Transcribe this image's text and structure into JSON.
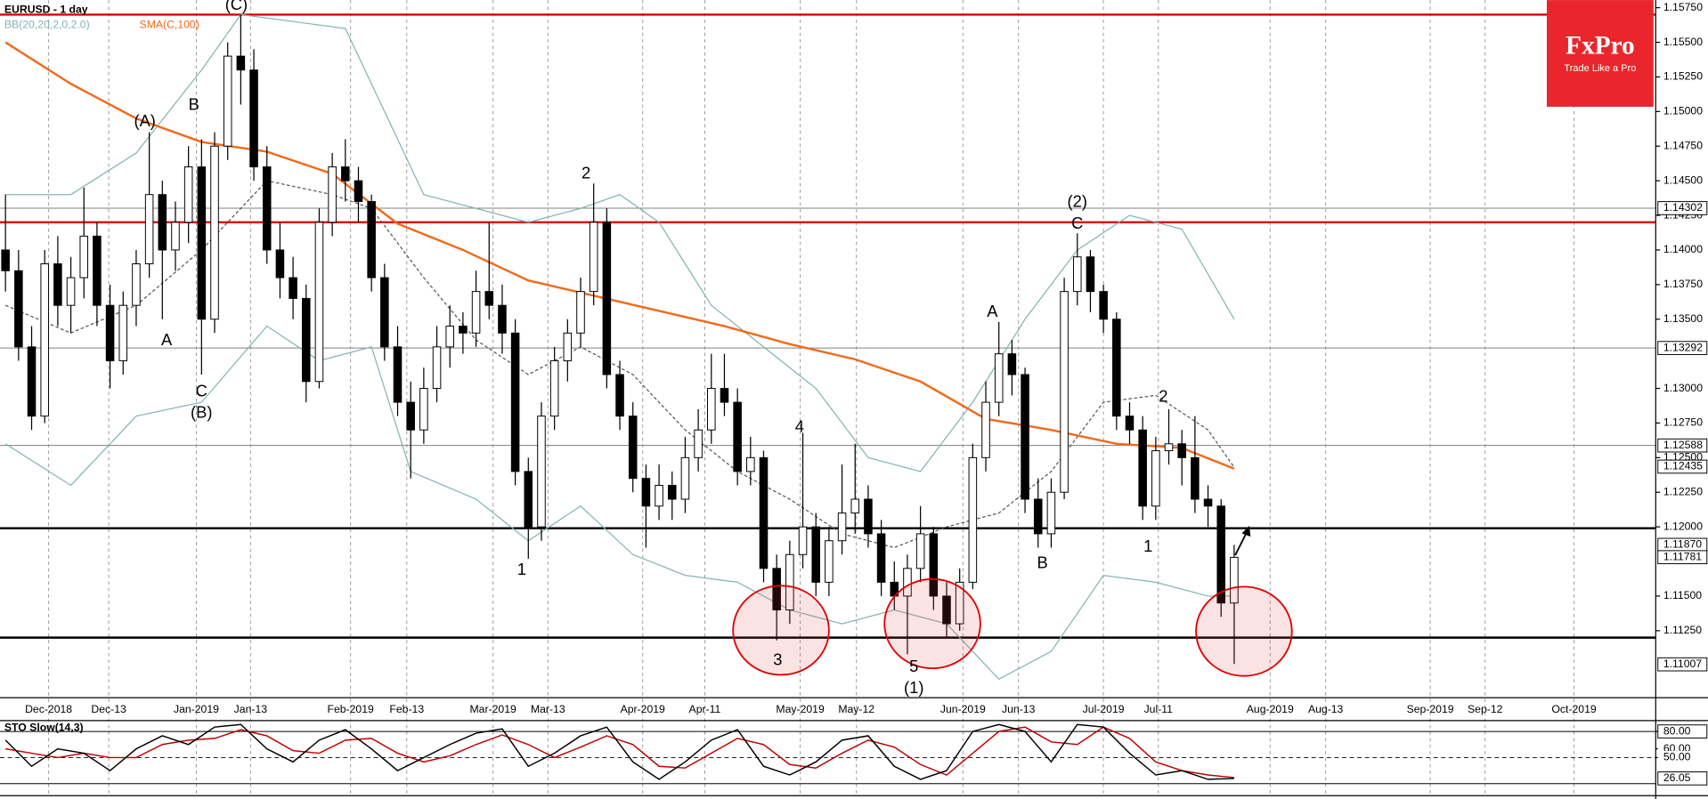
{
  "chart_data": {
    "type": "candlestick",
    "title": "EURUSD - 1 day",
    "xlim": [
      -0.42,
      126.25
    ],
    "ylim": [
      1.10766,
      1.15805
    ],
    "xticks": [
      {
        "value": 3.3,
        "label": "Dec-2018"
      },
      {
        "value": 7.9,
        "label": "Dec-13"
      },
      {
        "value": 14.6,
        "label": "Jan-2019"
      },
      {
        "value": 18.75,
        "label": "Jan-13"
      },
      {
        "value": 26.4,
        "label": "Feb-2019"
      },
      {
        "value": 30.7,
        "label": "Feb-13"
      },
      {
        "value": 37.3,
        "label": "Mar-2019"
      },
      {
        "value": 41.5,
        "label": "Mar-13"
      },
      {
        "value": 48.75,
        "label": "Apr-2019"
      },
      {
        "value": 53.5,
        "label": "Apr-11"
      },
      {
        "value": 60.8,
        "label": "May-2019"
      },
      {
        "value": 65.1,
        "label": "May-12"
      },
      {
        "value": 73.25,
        "label": "Jun-2019"
      },
      {
        "value": 77.5,
        "label": "Jun-13"
      },
      {
        "value": 84,
        "label": "Jul-2019"
      },
      {
        "value": 88.2,
        "label": "Jul-11"
      },
      {
        "value": 96.75,
        "label": "Aug-2019"
      },
      {
        "value": 101,
        "label": "Aug-13"
      },
      {
        "value": 109,
        "label": "Sep-2019"
      },
      {
        "value": 113.2,
        "label": "Sep-12"
      },
      {
        "value": 120,
        "label": "Oct-2019"
      }
    ],
    "yticks": [
      {
        "value": 1.1575,
        "label": "1.15750"
      },
      {
        "value": 1.155,
        "label": "1.15500"
      },
      {
        "value": 1.1525,
        "label": "1.15250"
      },
      {
        "value": 1.15,
        "label": "1.15000"
      },
      {
        "value": 1.1475,
        "label": "1.14750"
      },
      {
        "value": 1.145,
        "label": "1.14500"
      },
      {
        "value": 1.1425,
        "label": "1.14250"
      },
      {
        "value": 1.14,
        "label": "1.14000"
      },
      {
        "value": 1.1375,
        "label": "1.13750"
      },
      {
        "value": 1.135,
        "label": "1.13500"
      },
      {
        "value": 1.13,
        "label": "1.13000"
      },
      {
        "value": 1.1275,
        "label": "1.12750"
      },
      {
        "value": 1.125,
        "label": "1.12500"
      },
      {
        "value": 1.1225,
        "label": "1.12250"
      },
      {
        "value": 1.12,
        "label": "1.12000"
      },
      {
        "value": 1.115,
        "label": "1.11500"
      },
      {
        "value": 1.1125,
        "label": "1.11250"
      }
    ],
    "price_labels": [
      1.14302,
      1.13292,
      1.12588,
      1.12435,
      {
        "value": 1.1187,
        "label": "1.11870"
      },
      1.11781,
      1.11007
    ],
    "lines": [
      {
        "value": 1.157,
        "color": "#e00000"
      },
      {
        "value": 1.142,
        "color": "#e00000"
      },
      {
        "value": 1.1199,
        "color": "#000000"
      },
      {
        "value": 1.112,
        "color": "#000000"
      },
      {
        "value": 1.14302,
        "color": "#808080"
      },
      {
        "value": 1.13292,
        "color": "#808080"
      },
      {
        "value": 1.12588,
        "color": "#808080"
      }
    ],
    "open": [
      1.14,
      1.1385,
      1.133,
      1.128,
      1.139,
      1.136,
      1.138,
      1.141,
      1.136,
      1.132,
      1.136,
      1.139,
      1.144,
      1.14,
      1.142,
      1.146,
      1.135,
      1.1475,
      1.154,
      1.153,
      1.146,
      1.14,
      1.138,
      1.1365,
      1.1305,
      1.142,
      1.146,
      1.145,
      1.1435,
      1.138,
      1.133,
      1.129,
      1.127,
      1.13,
      1.133,
      1.1345,
      1.134,
      1.137,
      1.136,
      1.134,
      1.124,
      1.12,
      1.128,
      1.132,
      1.134,
      1.137,
      1.142,
      1.131,
      1.128,
      1.1235,
      1.1215,
      1.123,
      1.122,
      1.125,
      1.127,
      1.13,
      1.129,
      1.124,
      1.125,
      1.117,
      1.114,
      1.118,
      1.12,
      1.116,
      1.119,
      1.121,
      1.122,
      1.1195,
      1.116,
      1.115,
      1.117,
      1.1195,
      1.115,
      1.113,
      1.116,
      1.125,
      1.129,
      1.1325,
      1.131,
      1.122,
      1.1195,
      1.1225,
      1.137,
      1.1395,
      1.137,
      1.135,
      1.128,
      1.127,
      1.1215,
      1.1255,
      1.126,
      1.125,
      1.122,
      1.1215,
      1.1145
    ],
    "high": [
      1.144,
      1.14,
      1.1345,
      1.14,
      1.141,
      1.1395,
      1.1445,
      1.142,
      1.1375,
      1.137,
      1.14,
      1.1485,
      1.145,
      1.1435,
      1.1475,
      1.148,
      1.1485,
      1.155,
      1.157,
      1.1545,
      1.1475,
      1.142,
      1.1395,
      1.1375,
      1.143,
      1.147,
      1.148,
      1.146,
      1.144,
      1.139,
      1.1345,
      1.1305,
      1.1315,
      1.1345,
      1.136,
      1.1355,
      1.1385,
      1.142,
      1.1375,
      1.135,
      1.125,
      1.129,
      1.133,
      1.135,
      1.138,
      1.1448,
      1.143,
      1.132,
      1.129,
      1.1245,
      1.1245,
      1.124,
      1.1265,
      1.1285,
      1.1325,
      1.1325,
      1.13,
      1.1265,
      1.1255,
      1.118,
      1.119,
      1.1268,
      1.121,
      1.12,
      1.1245,
      1.126,
      1.123,
      1.1205,
      1.1175,
      1.118,
      1.1215,
      1.12,
      1.116,
      1.117,
      1.126,
      1.1305,
      1.1348,
      1.1335,
      1.1315,
      1.1235,
      1.1235,
      1.138,
      1.1412,
      1.14,
      1.1375,
      1.1355,
      1.129,
      1.128,
      1.1265,
      1.1285,
      1.127,
      1.128,
      1.123,
      1.122,
      1.1187
    ],
    "low": [
      1.137,
      1.132,
      1.127,
      1.1275,
      1.1345,
      1.134,
      1.1365,
      1.1345,
      1.13,
      1.131,
      1.1345,
      1.138,
      1.135,
      1.1385,
      1.1405,
      1.131,
      1.134,
      1.1465,
      1.1505,
      1.145,
      1.139,
      1.1365,
      1.135,
      1.129,
      1.13,
      1.141,
      1.1435,
      1.142,
      1.137,
      1.132,
      1.128,
      1.1235,
      1.126,
      1.129,
      1.1315,
      1.1325,
      1.133,
      1.135,
      1.1325,
      1.123,
      1.1177,
      1.119,
      1.127,
      1.1305,
      1.133,
      1.136,
      1.13,
      1.127,
      1.1225,
      1.1185,
      1.1205,
      1.1205,
      1.121,
      1.124,
      1.126,
      1.128,
      1.123,
      1.123,
      1.116,
      1.1118,
      1.113,
      1.117,
      1.115,
      1.115,
      1.118,
      1.1195,
      1.1185,
      1.115,
      1.114,
      1.1108,
      1.116,
      1.114,
      1.112,
      1.1125,
      1.1155,
      1.124,
      1.128,
      1.1295,
      1.121,
      1.1185,
      1.1185,
      1.122,
      1.136,
      1.1355,
      1.134,
      1.127,
      1.126,
      1.1205,
      1.1205,
      1.1245,
      1.123,
      1.121,
      1.12,
      1.1135,
      1.1101
    ],
    "close": [
      1.1385,
      1.133,
      1.128,
      1.139,
      1.136,
      1.138,
      1.141,
      1.136,
      1.132,
      1.136,
      1.139,
      1.144,
      1.14,
      1.142,
      1.146,
      1.135,
      1.1475,
      1.154,
      1.153,
      1.146,
      1.14,
      1.138,
      1.1365,
      1.1305,
      1.142,
      1.146,
      1.145,
      1.1435,
      1.138,
      1.133,
      1.129,
      1.127,
      1.13,
      1.133,
      1.1345,
      1.134,
      1.137,
      1.136,
      1.134,
      1.124,
      1.12,
      1.128,
      1.132,
      1.134,
      1.137,
      1.142,
      1.131,
      1.128,
      1.1235,
      1.1215,
      1.123,
      1.122,
      1.125,
      1.127,
      1.13,
      1.129,
      1.124,
      1.125,
      1.117,
      1.114,
      1.118,
      1.12,
      1.116,
      1.119,
      1.121,
      1.122,
      1.1195,
      1.116,
      1.115,
      1.117,
      1.1195,
      1.115,
      1.113,
      1.116,
      1.125,
      1.129,
      1.1325,
      1.131,
      1.122,
      1.1195,
      1.1225,
      1.137,
      1.1395,
      1.137,
      1.135,
      1.128,
      1.127,
      1.1215,
      1.1255,
      1.126,
      1.125,
      1.122,
      1.1215,
      1.1145,
      1.1178
    ],
    "sma": {
      "name": "SMA(C,100)",
      "color": "#f26a1b",
      "x": [
        0,
        5,
        10,
        15,
        20,
        25,
        30,
        35,
        40,
        45,
        50,
        55,
        60,
        65,
        70,
        75,
        80,
        85,
        90,
        94
      ],
      "values": [
        1.155,
        1.152,
        1.1495,
        1.1478,
        1.1471,
        1.1455,
        1.1419,
        1.14,
        1.1378,
        1.1367,
        1.1356,
        1.1345,
        1.1332,
        1.1321,
        1.1305,
        1.1278,
        1.127,
        1.126,
        1.1257,
        1.1242
      ]
    },
    "bollinger": {
      "name": "BB(20,20,2,0,2.0)",
      "color": "#82b4b4",
      "upper": {
        "x": [
          0,
          5,
          10,
          15,
          18,
          22,
          26,
          28,
          32,
          36,
          40,
          44,
          47,
          50,
          54,
          58,
          62,
          66,
          70,
          74,
          78,
          82,
          86,
          90,
          94
        ],
        "values": [
          1.144,
          1.144,
          1.147,
          1.153,
          1.157,
          1.1565,
          1.156,
          1.152,
          1.144,
          1.143,
          1.142,
          1.143,
          1.144,
          1.142,
          1.136,
          1.133,
          1.13,
          1.125,
          1.124,
          1.129,
          1.135,
          1.14,
          1.1425,
          1.1415,
          1.135
        ]
      },
      "middle": {
        "x": [
          0,
          5,
          10,
          15,
          20,
          25,
          28,
          32,
          36,
          40,
          44,
          48,
          52,
          56,
          60,
          64,
          68,
          72,
          76,
          80,
          84,
          88,
          92,
          94
        ],
        "values": [
          1.136,
          1.134,
          1.136,
          1.14,
          1.145,
          1.144,
          1.143,
          1.138,
          1.1335,
          1.131,
          1.133,
          1.131,
          1.127,
          1.124,
          1.122,
          1.1195,
          1.1185,
          1.12,
          1.121,
          1.124,
          1.129,
          1.1295,
          1.127,
          1.1243
        ]
      },
      "lower": {
        "x": [
          0,
          5,
          10,
          15,
          20,
          24,
          28,
          31,
          36,
          40,
          44,
          48,
          52,
          56,
          60,
          64,
          68,
          72,
          76,
          80,
          84,
          88,
          92,
          94
        ],
        "values": [
          1.126,
          1.123,
          1.128,
          1.129,
          1.1345,
          1.132,
          1.133,
          1.124,
          1.122,
          1.119,
          1.1215,
          1.118,
          1.1165,
          1.116,
          1.114,
          1.113,
          1.114,
          1.113,
          1.109,
          1.111,
          1.1165,
          1.116,
          1.115,
          1.115
        ]
      }
    },
    "annotations": [
      "(A)",
      "B",
      "A",
      "C",
      "(B)",
      "(C)",
      "1",
      "2",
      "4",
      "3",
      "5",
      "(1)",
      "A",
      "B",
      "(2)",
      "C",
      "2",
      "1"
    ],
    "logo": {
      "name": "FxPro",
      "tagline": "Trade Like a Pro"
    },
    "stochastic": {
      "name": "STO Slow(14,3)",
      "ylim": [
        7.5,
        91.25
      ],
      "yticks": [
        {
          "value": 80,
          "label": "80.00"
        },
        {
          "value": 60,
          "label": "60.00"
        },
        {
          "value": 50,
          "label": "50.00"
        }
      ],
      "levels": [
        80,
        50,
        20
      ],
      "current": 26.05,
      "x": [
        0,
        2,
        4,
        6,
        8,
        10,
        12,
        14,
        16,
        18,
        20,
        22,
        24,
        26,
        28,
        30,
        32,
        34,
        36,
        38,
        40,
        42,
        44,
        46,
        48,
        50,
        52,
        54,
        56,
        58,
        60,
        62,
        64,
        66,
        68,
        70,
        72,
        74,
        76,
        78,
        80,
        82,
        84,
        86,
        88,
        90,
        92,
        94
      ],
      "k": [
        70,
        40,
        60,
        55,
        35,
        60,
        75,
        65,
        85,
        88,
        60,
        45,
        70,
        82,
        60,
        35,
        50,
        65,
        78,
        83,
        40,
        55,
        75,
        85,
        45,
        25,
        45,
        70,
        82,
        40,
        30,
        45,
        70,
        75,
        40,
        25,
        35,
        80,
        88,
        80,
        45,
        88,
        85,
        55,
        30,
        35,
        25,
        26
      ],
      "d": [
        60,
        55,
        50,
        55,
        50,
        50,
        65,
        70,
        72,
        82,
        75,
        58,
        55,
        70,
        72,
        55,
        45,
        52,
        65,
        76,
        65,
        50,
        62,
        75,
        65,
        40,
        38,
        55,
        72,
        65,
        42,
        38,
        55,
        70,
        62,
        42,
        30,
        55,
        80,
        85,
        68,
        65,
        85,
        72,
        45,
        35,
        30,
        27
      ]
    }
  }
}
